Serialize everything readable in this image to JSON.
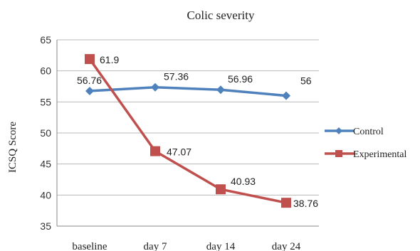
{
  "chart_data": {
    "type": "line",
    "title": "Colic severity",
    "xlabel": "",
    "ylabel": "ICSQ Score",
    "categories": [
      "baseline",
      "day 7",
      "day 14",
      "day 24"
    ],
    "ylim": [
      35,
      65
    ],
    "yticks": [
      35,
      40,
      45,
      50,
      55,
      60,
      65
    ],
    "grid": true,
    "legend_position": "right",
    "series": [
      {
        "name": "Control",
        "color": "#4f81bd",
        "marker": "diamond",
        "values": [
          56.76,
          57.36,
          56.96,
          56
        ]
      },
      {
        "name": "Experimental",
        "color": "#c0504d",
        "marker": "square",
        "values": [
          61.9,
          47.07,
          40.93,
          38.76
        ]
      }
    ]
  }
}
